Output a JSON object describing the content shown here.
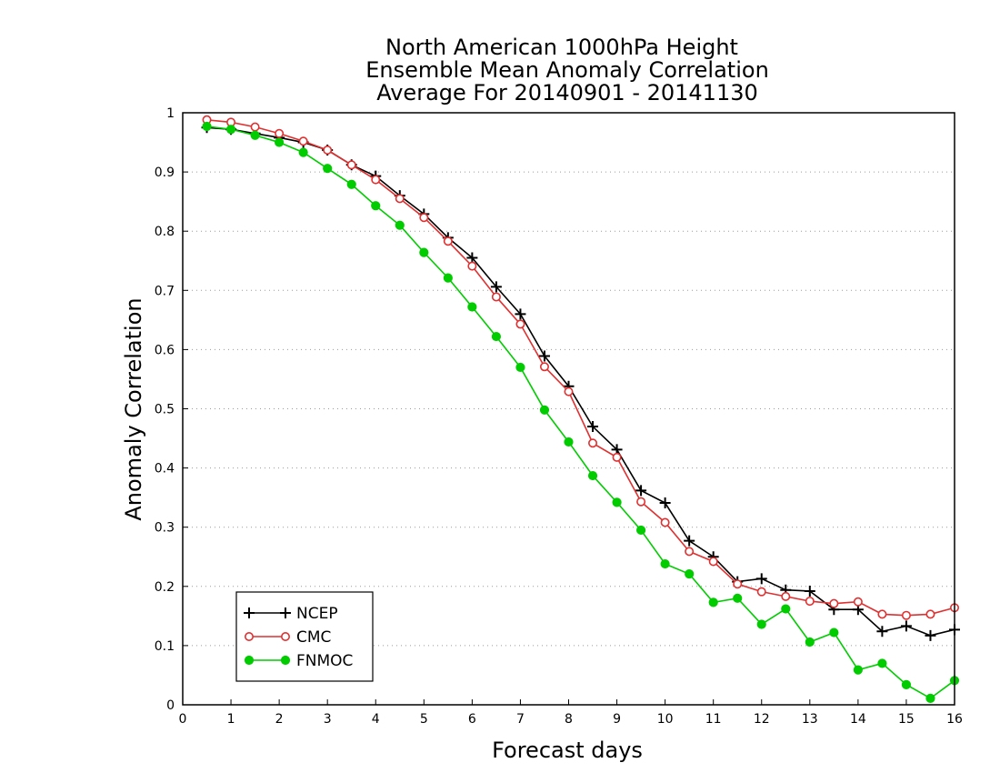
{
  "chart_data": {
    "type": "line",
    "title_lines": [
      "North American 1000hPa Height",
      "Ensemble Mean Anomaly Correlation",
      "Average For 20140901 - 20141130"
    ],
    "xlabel": "Forecast days",
    "ylabel": "Anomaly Correlation",
    "xlim": [
      0,
      16
    ],
    "ylim": [
      0,
      1
    ],
    "x_ticks": [
      "0",
      "1",
      "2",
      "3",
      "4",
      "5",
      "6",
      "7",
      "8",
      "9",
      "10",
      "11",
      "12",
      "13",
      "14",
      "15",
      "16"
    ],
    "y_ticks": [
      "0",
      "0.1",
      "0.2",
      "0.3",
      "0.4",
      "0.5",
      "0.6",
      "0.7",
      "0.8",
      "0.9",
      "1"
    ],
    "grid": true,
    "legend_position": "bottom-left",
    "x": [
      0.5,
      1,
      1.5,
      2,
      2.5,
      3,
      3.5,
      4,
      4.5,
      5,
      5.5,
      6,
      6.5,
      7,
      7.5,
      8,
      8.5,
      9,
      9.5,
      10,
      10.5,
      11,
      11.5,
      12,
      12.5,
      13,
      13.5,
      14,
      14.5,
      15,
      15.5,
      16
    ],
    "series": [
      {
        "name": "NCEP",
        "color": "#000000",
        "marker": "plus",
        "values": [
          0.975,
          0.972,
          0.965,
          0.958,
          0.95,
          0.937,
          0.912,
          0.893,
          0.86,
          0.829,
          0.789,
          0.755,
          0.706,
          0.66,
          0.589,
          0.538,
          0.47,
          0.431,
          0.362,
          0.341,
          0.277,
          0.25,
          0.208,
          0.213,
          0.194,
          0.192,
          0.161,
          0.161,
          0.124,
          0.133,
          0.117,
          0.127
        ]
      },
      {
        "name": "CMC",
        "color": "#e03030",
        "marker": "open-circle",
        "values": [
          0.988,
          0.984,
          0.976,
          0.965,
          0.952,
          0.937,
          0.912,
          0.887,
          0.855,
          0.823,
          0.783,
          0.741,
          0.689,
          0.643,
          0.571,
          0.529,
          0.442,
          0.418,
          0.343,
          0.308,
          0.259,
          0.242,
          0.204,
          0.191,
          0.183,
          0.175,
          0.171,
          0.174,
          0.153,
          0.151,
          0.153,
          0.164
        ]
      },
      {
        "name": "FNMOC",
        "color": "#00cc00",
        "marker": "filled-circle",
        "values": [
          0.977,
          0.972,
          0.962,
          0.95,
          0.933,
          0.906,
          0.879,
          0.843,
          0.81,
          0.764,
          0.721,
          0.672,
          0.622,
          0.57,
          0.498,
          0.444,
          0.387,
          0.342,
          0.295,
          0.238,
          0.221,
          0.173,
          0.18,
          0.136,
          0.162,
          0.106,
          0.122,
          0.059,
          0.07,
          0.034,
          0.011,
          0.041
        ]
      }
    ]
  }
}
